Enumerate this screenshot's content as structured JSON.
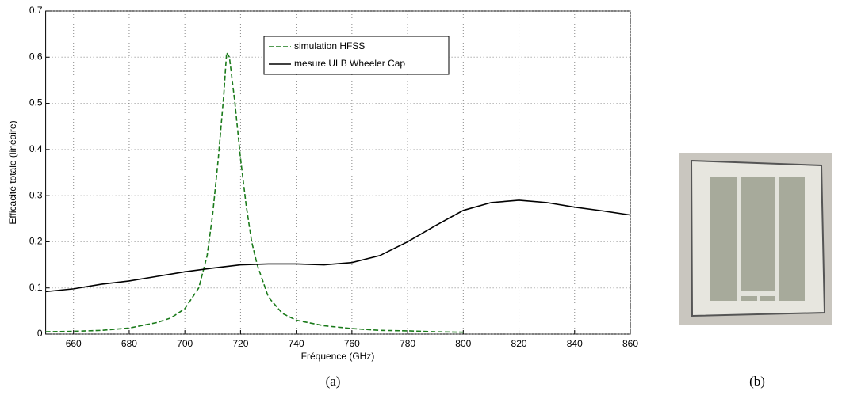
{
  "chart_data": {
    "type": "line",
    "xlabel": "Fréquence (GHz)",
    "ylabel": "Efficacité totale (linéaire)",
    "xlim": [
      650,
      860
    ],
    "xticks": [
      660,
      680,
      700,
      720,
      740,
      760,
      780,
      800,
      820,
      840,
      860
    ],
    "ylim": [
      0,
      0.7
    ],
    "yticks": [
      0,
      0.1,
      0.2,
      0.3,
      0.4,
      0.5,
      0.6,
      0.7
    ],
    "grid": true,
    "legend": "upper center",
    "series": [
      {
        "name": "simulation HFSS",
        "color": "#1a7a1a",
        "linestyle": "dashed",
        "x": [
          650,
          660,
          670,
          680,
          690,
          695,
          700,
          705,
          708,
          710,
          712,
          714,
          715,
          716,
          718,
          720,
          722,
          724,
          726,
          730,
          735,
          740,
          750,
          760,
          770,
          780,
          790,
          800
        ],
        "values": [
          0.005,
          0.006,
          0.008,
          0.013,
          0.025,
          0.035,
          0.055,
          0.1,
          0.17,
          0.26,
          0.38,
          0.52,
          0.61,
          0.6,
          0.5,
          0.38,
          0.28,
          0.2,
          0.15,
          0.08,
          0.045,
          0.03,
          0.018,
          0.012,
          0.008,
          0.007,
          0.005,
          0.004
        ]
      },
      {
        "name": "mesure ULB Wheeler Cap",
        "color": "#000000",
        "linestyle": "solid",
        "x": [
          650,
          660,
          670,
          680,
          690,
          700,
          710,
          720,
          730,
          740,
          750,
          760,
          770,
          780,
          790,
          800,
          810,
          820,
          830,
          840,
          850,
          860
        ],
        "values": [
          0.092,
          0.098,
          0.108,
          0.115,
          0.125,
          0.135,
          0.143,
          0.15,
          0.152,
          0.152,
          0.15,
          0.155,
          0.17,
          0.2,
          0.235,
          0.268,
          0.285,
          0.29,
          0.285,
          0.275,
          0.267,
          0.258
        ]
      }
    ]
  },
  "captions": [
    "(a)",
    "(b)"
  ]
}
